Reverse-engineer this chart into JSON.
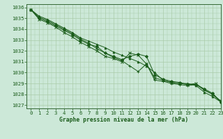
{
  "title": "Graphe pression niveau de la mer (hPa)",
  "xlim": [
    -0.5,
    23
  ],
  "ylim": [
    1026.7,
    1036.3
  ],
  "bg_color": "#cce8d8",
  "grid_color": "#aaccaa",
  "line_color": "#1a5c1a",
  "series": [
    [
      1035.8,
      1035.2,
      1034.9,
      1034.5,
      1034.1,
      1033.7,
      1033.2,
      1032.9,
      1032.6,
      1032.3,
      1031.9,
      1031.6,
      1031.3,
      1031.0,
      1030.6,
      1030.0,
      1029.3,
      1029.1,
      1029.0,
      1029.0,
      1028.8,
      1028.2,
      1027.8,
      1027.3
    ],
    [
      1035.8,
      1035.0,
      1034.7,
      1034.3,
      1033.9,
      1033.5,
      1033.0,
      1032.6,
      1032.4,
      1031.8,
      1031.5,
      1031.2,
      1031.5,
      1031.7,
      1031.5,
      1029.8,
      1029.4,
      1029.2,
      1029.1,
      1028.9,
      1028.9,
      1028.5,
      1028.1,
      1027.3
    ],
    [
      1035.8,
      1034.9,
      1034.6,
      1034.2,
      1033.7,
      1033.3,
      1032.8,
      1032.4,
      1032.0,
      1031.5,
      1031.3,
      1031.0,
      1031.8,
      1031.6,
      1030.8,
      1029.5,
      1029.3,
      1029.1,
      1029.0,
      1028.9,
      1029.0,
      1028.4,
      1028.0,
      1027.4
    ],
    [
      1035.8,
      1035.1,
      1034.8,
      1034.4,
      1034.0,
      1033.6,
      1033.1,
      1032.7,
      1032.2,
      1031.8,
      1031.4,
      1031.1,
      1030.6,
      1030.1,
      1030.8,
      1029.3,
      1029.2,
      1029.0,
      1028.9,
      1028.8,
      1028.9,
      1028.4,
      1028.0,
      1027.3
    ]
  ],
  "xticks": [
    0,
    1,
    2,
    3,
    4,
    5,
    6,
    7,
    8,
    9,
    10,
    11,
    12,
    13,
    14,
    15,
    16,
    17,
    18,
    19,
    20,
    21,
    22,
    23
  ],
  "yticks": [
    1027,
    1028,
    1029,
    1030,
    1031,
    1032,
    1033,
    1034,
    1035,
    1036
  ],
  "tick_fontsize": 5.2,
  "label_fontsize": 5.8
}
